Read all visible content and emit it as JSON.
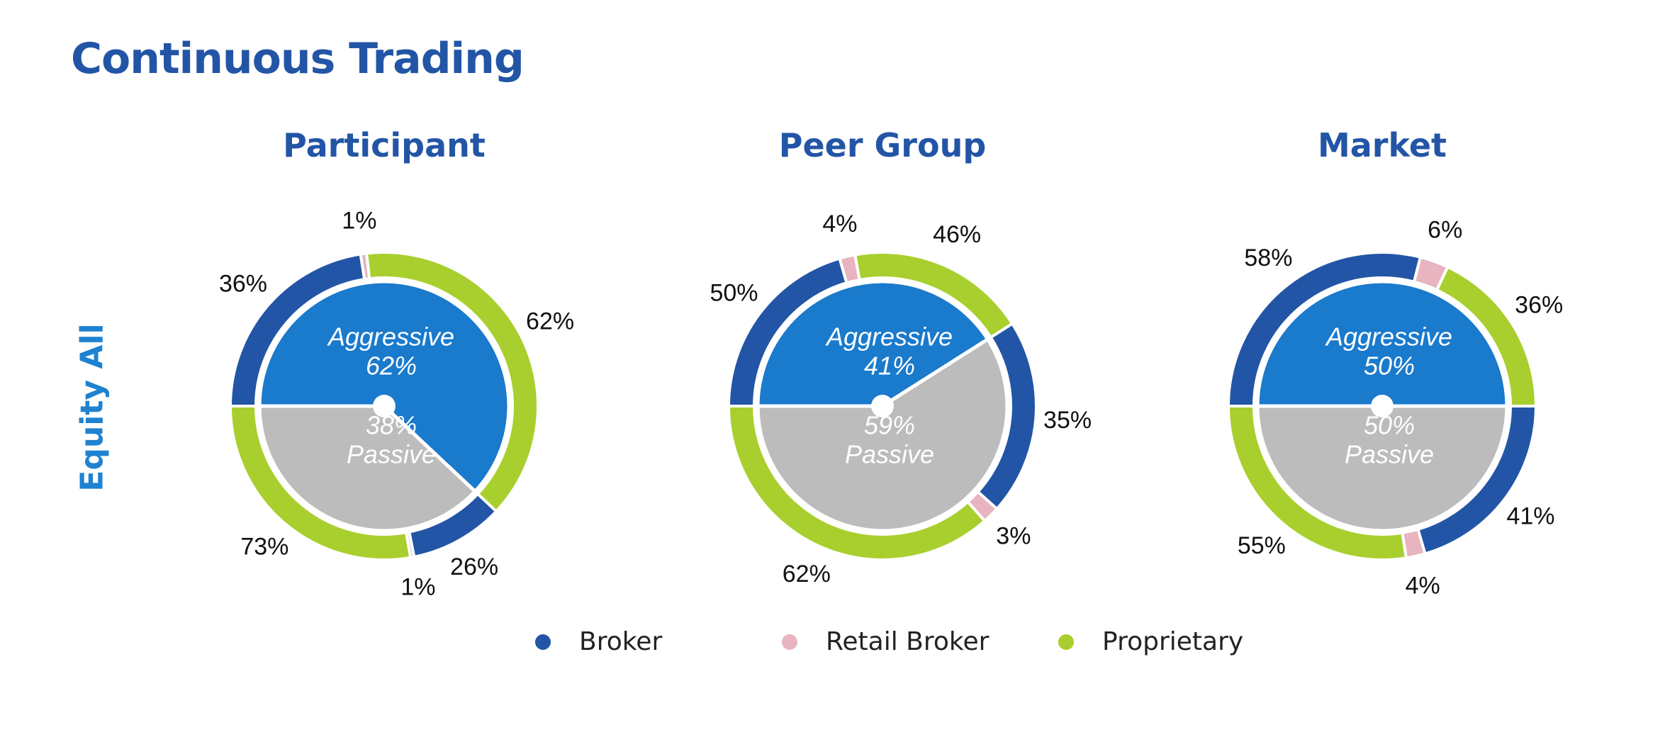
{
  "title": "Continuous Trading",
  "row_label": "Equity All",
  "colors": {
    "broker": "#2355a6",
    "retail_broker": "#e8b4bf",
    "proprietary": "#a8cf2e",
    "aggressive": "#1a7acc",
    "passive": "#bcbcbc"
  },
  "legend": [
    {
      "label": "Broker",
      "color": "#2355a6"
    },
    {
      "label": "Retail Broker",
      "color": "#e8b4bf"
    },
    {
      "label": "Proprietary",
      "color": "#a8cf2e"
    }
  ],
  "chart_data": [
    {
      "type": "pie",
      "title": "Participant",
      "inner": {
        "aggressive": {
          "label": "Aggressive",
          "value": 62,
          "text": "62%"
        },
        "passive": {
          "label": "Passive",
          "value": 38,
          "text": "38%"
        }
      },
      "outer_aggressive": [
        {
          "category": "Broker",
          "value": 36,
          "text": "36%"
        },
        {
          "category": "Retail Broker",
          "value": 1,
          "text": "1%"
        },
        {
          "category": "Proprietary",
          "value": 62,
          "text": "62%"
        }
      ],
      "outer_passive": [
        {
          "category": "Broker",
          "value": 26,
          "text": "26%"
        },
        {
          "category": "Retail Broker",
          "value": 1,
          "text": "1%"
        },
        {
          "category": "Proprietary",
          "value": 73,
          "text": "73%"
        }
      ]
    },
    {
      "type": "pie",
      "title": "Peer Group",
      "inner": {
        "aggressive": {
          "label": "Aggressive",
          "value": 41,
          "text": "41%"
        },
        "passive": {
          "label": "Passive",
          "value": 59,
          "text": "59%"
        }
      },
      "outer_aggressive": [
        {
          "category": "Broker",
          "value": 50,
          "text": "50%"
        },
        {
          "category": "Retail Broker",
          "value": 4,
          "text": "4%"
        },
        {
          "category": "Proprietary",
          "value": 46,
          "text": "46%"
        }
      ],
      "outer_passive": [
        {
          "category": "Broker",
          "value": 35,
          "text": "35%"
        },
        {
          "category": "Retail Broker",
          "value": 3,
          "text": "3%"
        },
        {
          "category": "Proprietary",
          "value": 62,
          "text": "62%"
        }
      ]
    },
    {
      "type": "pie",
      "title": "Market",
      "inner": {
        "aggressive": {
          "label": "Aggressive",
          "value": 50,
          "text": "50%"
        },
        "passive": {
          "label": "Passive",
          "value": 50,
          "text": "50%"
        }
      },
      "outer_aggressive": [
        {
          "category": "Broker",
          "value": 58,
          "text": "58%"
        },
        {
          "category": "Retail Broker",
          "value": 6,
          "text": "6%"
        },
        {
          "category": "Proprietary",
          "value": 36,
          "text": "36%"
        }
      ],
      "outer_passive": [
        {
          "category": "Broker",
          "value": 41,
          "text": "41%"
        },
        {
          "category": "Retail Broker",
          "value": 4,
          "text": "4%"
        },
        {
          "category": "Proprietary",
          "value": 55,
          "text": "55%"
        }
      ]
    }
  ]
}
